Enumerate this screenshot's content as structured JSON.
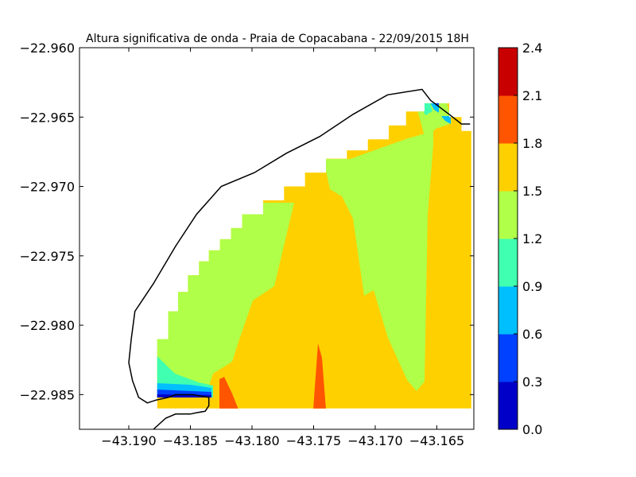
{
  "chart_data": {
    "type": "contour",
    "title": "Altura significativa de onda - Praia de Copacabana - 22/09/2015 18H",
    "xlabel": "",
    "ylabel": "",
    "xlim": [
      -43.194,
      -43.162
    ],
    "ylim": [
      -22.9875,
      -22.96
    ],
    "x_ticks": [
      -43.19,
      -43.185,
      -43.18,
      -43.175,
      -43.17,
      -43.165
    ],
    "x_tick_labels": [
      "−43.190",
      "−43.185",
      "−43.180",
      "−43.175",
      "−43.170",
      "−43.165"
    ],
    "y_ticks": [
      -22.96,
      -22.965,
      -22.97,
      -22.975,
      -22.98,
      -22.985
    ],
    "y_tick_labels": [
      "−22.960",
      "−22.965",
      "−22.970",
      "−22.975",
      "−22.980",
      "−22.985"
    ],
    "grid": false,
    "colorbar": {
      "levels": [
        0.0,
        0.3,
        0.6,
        0.9,
        1.2,
        1.5,
        1.8,
        2.1,
        2.4
      ],
      "labels": [
        "0.0",
        "0.3",
        "0.6",
        "0.9",
        "1.2",
        "1.5",
        "1.8",
        "2.1",
        "2.4"
      ],
      "colors": [
        "#0000c8",
        "#0040ff",
        "#00bfff",
        "#40ffb0",
        "#b0ff48",
        "#ffd000",
        "#ff5500",
        "#c80000"
      ]
    },
    "coastline": [
      [
        -43.188,
        -22.9875
      ],
      [
        -43.187,
        -22.9867
      ],
      [
        -43.1862,
        -22.9864
      ],
      [
        -43.185,
        -22.9864
      ],
      [
        -43.1845,
        -22.9863
      ],
      [
        -43.1838,
        -22.9862
      ],
      [
        -43.1835,
        -22.9858
      ],
      [
        -43.1835,
        -22.9852
      ],
      [
        -43.1848,
        -22.985
      ],
      [
        -43.1862,
        -22.985
      ],
      [
        -43.1868,
        -22.9852
      ],
      [
        -43.1878,
        -22.9854
      ],
      [
        -43.1885,
        -22.9856
      ],
      [
        -43.1892,
        -22.9852
      ],
      [
        -43.1897,
        -22.984
      ],
      [
        -43.19,
        -22.9827
      ],
      [
        -43.1898,
        -22.981
      ],
      [
        -43.1895,
        -22.979
      ],
      [
        -43.188,
        -22.977
      ],
      [
        -43.1862,
        -22.9743
      ],
      [
        -43.1845,
        -22.972
      ],
      [
        -43.1825,
        -22.97
      ],
      [
        -43.1798,
        -22.969
      ],
      [
        -43.1772,
        -22.9676
      ],
      [
        -43.1745,
        -22.9664
      ],
      [
        -43.1718,
        -22.9648
      ],
      [
        -43.169,
        -22.9634
      ],
      [
        -43.1662,
        -22.963
      ],
      [
        -43.1655,
        -22.9638
      ],
      [
        -43.164,
        -22.9648
      ],
      [
        -43.163,
        -22.9655
      ],
      [
        -43.1623,
        -22.9655
      ]
    ],
    "data_region": {
      "x_range": [
        -43.1877,
        -43.1622
      ],
      "y_range": [
        -22.986,
        -22.964
      ],
      "stair_steps": [
        [
          -43.1877,
          -22.981
        ],
        [
          -43.1868,
          -22.979
        ],
        [
          -43.186,
          -22.9776
        ],
        [
          -43.1852,
          -22.9764
        ],
        [
          -43.1843,
          -22.9754
        ],
        [
          -43.1835,
          -22.9746
        ],
        [
          -43.1826,
          -22.9738
        ],
        [
          -43.1817,
          -22.973
        ],
        [
          -43.1808,
          -22.972
        ],
        [
          -43.1791,
          -22.971
        ],
        [
          -43.1774,
          -22.97
        ],
        [
          -43.1757,
          -22.969
        ],
        [
          -43.174,
          -22.968
        ],
        [
          -43.1723,
          -22.9674
        ],
        [
          -43.1706,
          -22.9666
        ],
        [
          -43.1689,
          -22.9656
        ],
        [
          -43.1675,
          -22.9646
        ],
        [
          -43.166,
          -22.964
        ],
        [
          -43.164,
          -22.965
        ],
        [
          -43.163,
          -22.966
        ],
        [
          -43.1622,
          -22.966
        ]
      ]
    }
  }
}
